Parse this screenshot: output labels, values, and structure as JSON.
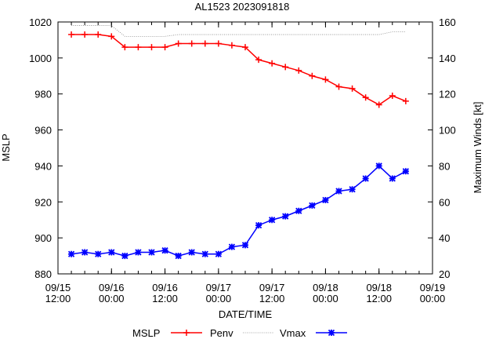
{
  "chart_data": {
    "type": "line",
    "title": "AL1523 2023091818",
    "xlabel": "DATE/TIME",
    "ylabel": "MSLP",
    "y2label": "Maximum Winds [kt]",
    "ylim": [
      880,
      1020
    ],
    "y2lim": [
      20,
      160
    ],
    "yticks": [
      880,
      900,
      920,
      940,
      960,
      980,
      1000,
      1020
    ],
    "y2ticks": [
      20,
      40,
      60,
      80,
      100,
      120,
      140,
      160
    ],
    "xlim_hours": [
      0,
      84
    ],
    "xticks": [
      {
        "hour": 0,
        "l1": "09/15",
        "l2": "12:00"
      },
      {
        "hour": 12,
        "l1": "09/16",
        "l2": "00:00"
      },
      {
        "hour": 24,
        "l1": "09/16",
        "l2": "12:00"
      },
      {
        "hour": 36,
        "l1": "09/17",
        "l2": "00:00"
      },
      {
        "hour": 48,
        "l1": "09/17",
        "l2": "12:00"
      },
      {
        "hour": 60,
        "l1": "09/18",
        "l2": "00:00"
      },
      {
        "hour": 72,
        "l1": "09/18",
        "l2": "12:00"
      },
      {
        "hour": 84,
        "l1": "09/19",
        "l2": "00:00"
      }
    ],
    "x_hours": [
      3,
      6,
      9,
      12,
      15,
      18,
      21,
      24,
      27,
      30,
      33,
      36,
      39,
      42,
      45,
      48,
      51,
      54,
      57,
      60,
      63,
      66,
      69,
      72,
      75,
      78
    ],
    "series": [
      {
        "name": "MSLP",
        "axis": "left",
        "color": "#ff0000",
        "marker": "plus",
        "values": [
          1013,
          1013,
          1013,
          1012,
          1006,
          1006,
          1006,
          1006,
          1008,
          1008,
          1008,
          1008,
          1007,
          1006,
          999,
          997,
          995,
          993,
          990,
          988,
          984,
          983,
          978,
          974,
          979,
          976
        ]
      },
      {
        "name": "Penv",
        "axis": "left",
        "color": "#888888",
        "marker": "none",
        "values": [
          1018,
          1018,
          1018,
          1018,
          1012,
          1012,
          1012,
          1012,
          1013,
          1013,
          1013,
          1013,
          1013,
          1013,
          1013,
          1013,
          1013,
          1013,
          1013,
          1013,
          1013,
          1013,
          1013,
          1013,
          1014.5,
          1014.5
        ]
      },
      {
        "name": "Vmax",
        "axis": "right",
        "color": "#0000ff",
        "marker": "star",
        "values": [
          31,
          32,
          31,
          32,
          30,
          32,
          32,
          33,
          30,
          32,
          31,
          31,
          35,
          36,
          47,
          50,
          52,
          55,
          58,
          61,
          66,
          67,
          73,
          80,
          73,
          77
        ]
      }
    ],
    "legend_position": "bottom"
  }
}
